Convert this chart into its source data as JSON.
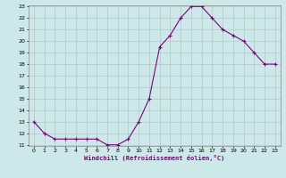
{
  "x": [
    0,
    1,
    2,
    3,
    4,
    5,
    6,
    7,
    8,
    9,
    10,
    11,
    12,
    13,
    14,
    15,
    16,
    17,
    18,
    19,
    20,
    21,
    22,
    23
  ],
  "y": [
    13,
    12,
    11.5,
    11.5,
    11.5,
    11.5,
    11.5,
    11,
    11,
    11.5,
    13,
    15,
    19.5,
    20.5,
    22,
    23,
    23,
    22,
    21,
    20.5,
    20,
    19,
    18,
    18
  ],
  "xlabel": "Windchill (Refroidissement éolien,°C)",
  "ylim": [
    11,
    23
  ],
  "xlim": [
    -0.5,
    23.5
  ],
  "yticks": [
    11,
    12,
    13,
    14,
    15,
    16,
    17,
    18,
    19,
    20,
    21,
    22,
    23
  ],
  "xticks": [
    0,
    1,
    2,
    3,
    4,
    5,
    6,
    7,
    8,
    9,
    10,
    11,
    12,
    13,
    14,
    15,
    16,
    17,
    18,
    19,
    20,
    21,
    22,
    23
  ],
  "line_color": "#800080",
  "bg_color": "#cce8e8",
  "grid_color": "#b0c8c8"
}
